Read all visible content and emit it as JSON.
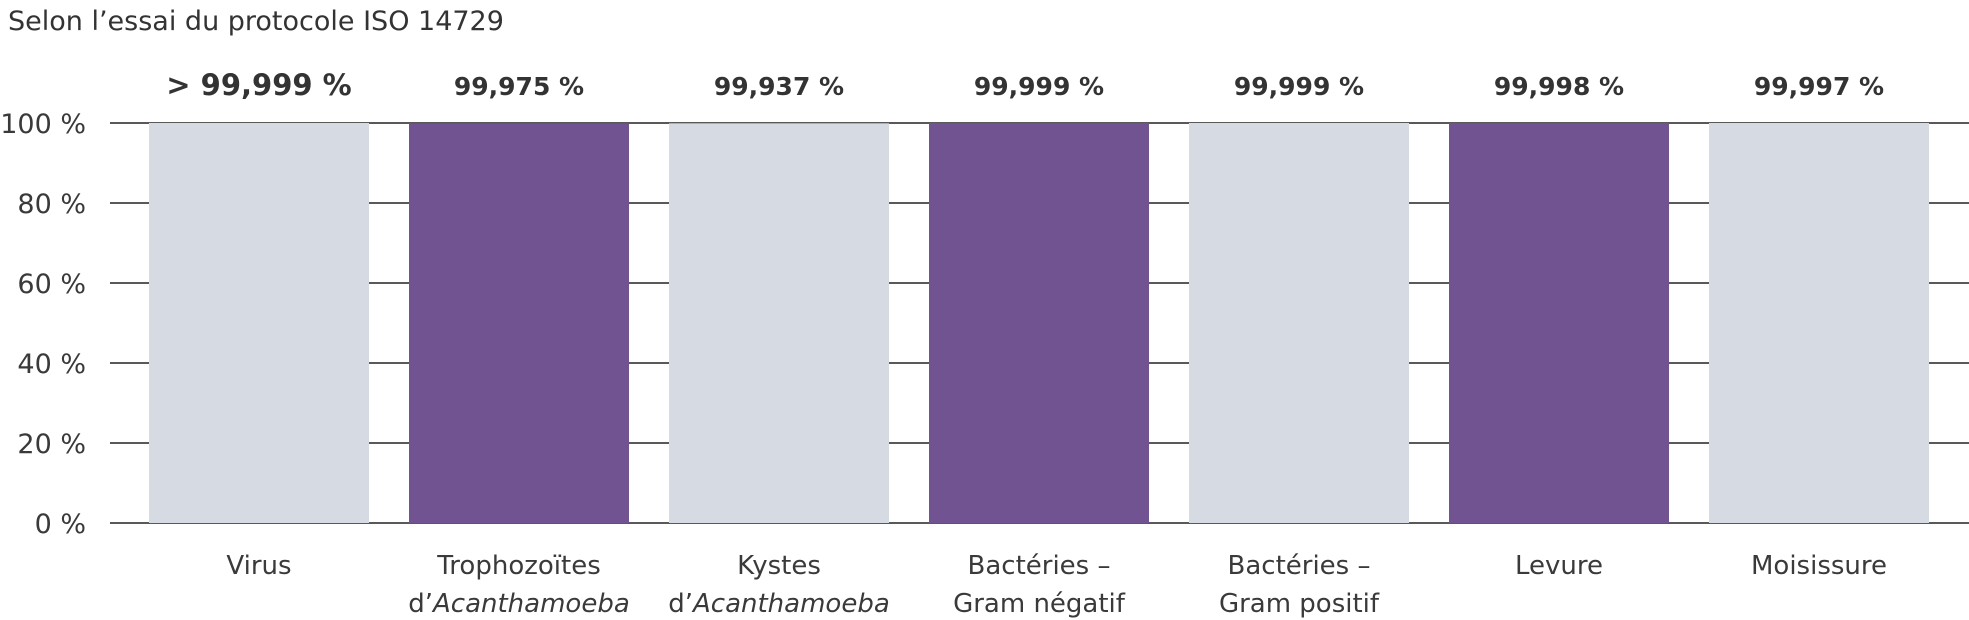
{
  "chart_data": {
    "type": "bar",
    "subtitle": "Selon l’essai du protocole ISO 14729",
    "ylim": [
      0,
      100
    ],
    "yticks": [
      0,
      20,
      40,
      60,
      80,
      100
    ],
    "ytick_labels": [
      "0 %",
      "20 %",
      "40 %",
      "60 %",
      "80 %",
      "100 %"
    ],
    "grid": true,
    "categories": [
      "Virus",
      "Trophozoïtes d’Acanthamoeba",
      "Kystes d’Acanthamoeba",
      "Bactéries – Gram négatif",
      "Bactéries – Gram positif",
      "Levure",
      "Moisissure"
    ],
    "category_lines": [
      [
        [
          {
            "t": "Virus",
            "i": false
          }
        ]
      ],
      [
        [
          {
            "t": "Trophozoïtes",
            "i": false
          }
        ],
        [
          {
            "t": "d’",
            "i": false
          },
          {
            "t": "Acanthamoeba",
            "i": true
          }
        ]
      ],
      [
        [
          {
            "t": "Kystes",
            "i": false
          }
        ],
        [
          {
            "t": "d’",
            "i": false
          },
          {
            "t": "Acanthamoeba",
            "i": true
          }
        ]
      ],
      [
        [
          {
            "t": "Bactéries –",
            "i": false
          }
        ],
        [
          {
            "t": "Gram négatif",
            "i": false
          }
        ]
      ],
      [
        [
          {
            "t": "Bactéries –",
            "i": false
          }
        ],
        [
          {
            "t": "Gram positif",
            "i": false
          }
        ]
      ],
      [
        [
          {
            "t": "Levure",
            "i": false
          }
        ]
      ],
      [
        [
          {
            "t": "Moisissure",
            "i": false
          }
        ]
      ]
    ],
    "values": [
      99.999,
      99.975,
      99.937,
      99.999,
      99.999,
      99.998,
      99.997
    ],
    "value_labels": [
      "> 99,999 %",
      "99,975 %",
      "99,937 %",
      "99,999 %",
      "99,999 %",
      "99,998 %",
      "99,997 %"
    ],
    "emphasized_label_index": 0,
    "bar_colors": [
      "#d6dbe3",
      "#715392",
      "#d6dbe3",
      "#715392",
      "#d6dbe3",
      "#715392",
      "#d6dbe3"
    ],
    "grid_color": "#222222"
  }
}
